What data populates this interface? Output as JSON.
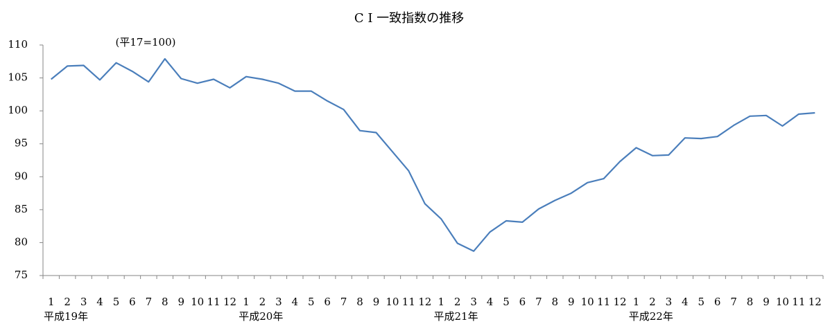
{
  "chart_data": {
    "type": "line",
    "title": "C I 一致指数の推移",
    "annotation": "(平17=100)",
    "categories": [
      "1",
      "2",
      "3",
      "4",
      "5",
      "6",
      "7",
      "8",
      "9",
      "10",
      "11",
      "12",
      "1",
      "2",
      "3",
      "4",
      "5",
      "6",
      "7",
      "8",
      "9",
      "10",
      "11",
      "12",
      "1",
      "2",
      "3",
      "4",
      "5",
      "6",
      "7",
      "8",
      "9",
      "10",
      "11",
      "12",
      "1",
      "2",
      "3",
      "4",
      "5",
      "6",
      "7",
      "8",
      "9",
      "10",
      "11",
      "12"
    ],
    "year_labels": [
      "平成19年",
      "平成20年",
      "平成21年",
      "平成22年"
    ],
    "series": [
      {
        "color": "#4a7ebb",
        "values": [
          104.8,
          106.8,
          106.9,
          104.7,
          107.3,
          106.0,
          104.4,
          107.9,
          104.9,
          104.2,
          104.8,
          103.5,
          105.2,
          104.8,
          104.2,
          103.0,
          103.0,
          101.5,
          100.2,
          97.0,
          96.7,
          93.8,
          90.9,
          85.9,
          83.6,
          79.9,
          78.7,
          81.6,
          83.3,
          83.1,
          85.1,
          86.4,
          87.5,
          89.1,
          89.7,
          92.3,
          94.4,
          93.2,
          93.3,
          95.9,
          95.8,
          96.1,
          97.8,
          99.2,
          99.3,
          97.7,
          99.5,
          99.7
        ]
      }
    ],
    "ylim": [
      75,
      110
    ],
    "yticks": [
      75,
      80,
      85,
      90,
      95,
      100,
      105,
      110
    ],
    "grid": false
  }
}
